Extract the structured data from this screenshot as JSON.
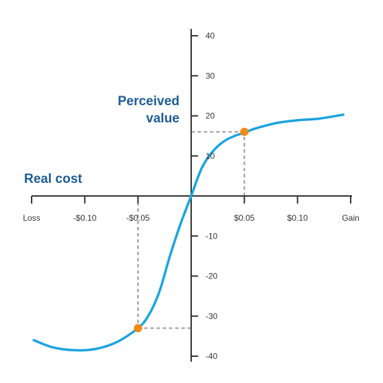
{
  "chart_data": {
    "type": "line",
    "title": "",
    "xlabel": "Real cost",
    "ylabel": [
      "Perceived",
      "value"
    ],
    "x_ticks": [
      {
        "value": -0.15,
        "label": "Loss"
      },
      {
        "value": -0.1,
        "label": "-$0.10"
      },
      {
        "value": -0.05,
        "label": "-$0.05"
      },
      {
        "value": 0.05,
        "label": "$0.05"
      },
      {
        "value": 0.1,
        "label": "$0.10"
      },
      {
        "value": 0.15,
        "label": "Gain"
      }
    ],
    "y_ticks": [
      40,
      30,
      20,
      10,
      -10,
      -20,
      -30,
      -40
    ],
    "xlim": [
      -0.15,
      0.15
    ],
    "ylim": [
      -40,
      40
    ],
    "grid": false,
    "series": [
      {
        "values_x": [
          -0.148,
          -0.13,
          -0.11,
          -0.09,
          -0.07,
          -0.05,
          -0.04,
          -0.03,
          -0.02,
          -0.01,
          0,
          0.01,
          0.02,
          0.03,
          0.04,
          0.05,
          0.06,
          0.08,
          0.1,
          0.12,
          0.143
        ],
        "values_y": [
          -36,
          -37.8,
          -38.5,
          -38.2,
          -36.5,
          -33,
          -29.8,
          -24,
          -15,
          -7,
          0,
          7,
          11,
          13.5,
          14.9,
          15.8,
          16.8,
          18.2,
          18.9,
          19.3,
          20.3
        ]
      }
    ],
    "highlight_points": [
      {
        "x": 0.05,
        "y": 16
      },
      {
        "x": -0.05,
        "y": -33
      }
    ],
    "colors": {
      "curve": "#1ba4dc",
      "point": "#ef8a15",
      "axis": "#333333",
      "guide": "#999999",
      "title": "#1e5b94"
    }
  }
}
